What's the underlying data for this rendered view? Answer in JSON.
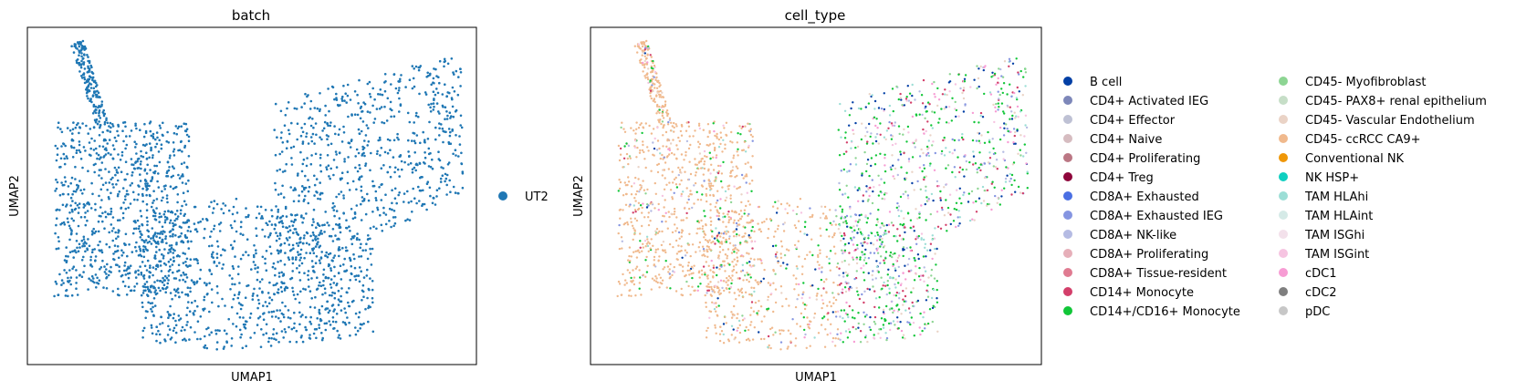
{
  "chart_data": [
    {
      "type": "scatter",
      "title": "batch",
      "xlabel": "UMAP1",
      "ylabel": "UMAP2",
      "ticks": "none",
      "legend_placement": "right",
      "legend": [
        {
          "label": "UT2",
          "color": "#1f77b4"
        }
      ]
    },
    {
      "type": "scatter",
      "title": "cell_type",
      "xlabel": "UMAP1",
      "ylabel": "UMAP2",
      "ticks": "none",
      "legend_placement": "right",
      "legend": [
        {
          "label": "B cell",
          "color": "#023fa5"
        },
        {
          "label": "CD4+ Activated IEG",
          "color": "#7d87b9"
        },
        {
          "label": "CD4+ Effector",
          "color": "#bec1d4"
        },
        {
          "label": "CD4+ Naive",
          "color": "#d6bcc0"
        },
        {
          "label": "CD4+ Proliferating",
          "color": "#bb7784"
        },
        {
          "label": "CD4+ Treg",
          "color": "#8e063b"
        },
        {
          "label": "CD8A+ Exhausted",
          "color": "#4a6fe3"
        },
        {
          "label": "CD8A+ Exhausted IEG",
          "color": "#8595e1"
        },
        {
          "label": "CD8A+ NK-like",
          "color": "#b5bbe3"
        },
        {
          "label": "CD8A+ Proliferating",
          "color": "#e6afb9"
        },
        {
          "label": "CD8A+ Tissue-resident",
          "color": "#e07b91"
        },
        {
          "label": "CD14+ Monocyte",
          "color": "#d33f6a"
        },
        {
          "label": "CD14+/CD16+ Monocyte",
          "color": "#11c638"
        },
        {
          "label": "CD45- Myofibroblast",
          "color": "#8dd593"
        },
        {
          "label": "CD45- PAX8+ renal epithelium",
          "color": "#c6dec7"
        },
        {
          "label": "CD45- Vascular Endothelium",
          "color": "#ead3c6"
        },
        {
          "label": "CD45- ccRCC CA9+",
          "color": "#f0b98d"
        },
        {
          "label": "Conventional NK",
          "color": "#ef9708"
        },
        {
          "label": "NK HSP+",
          "color": "#0fcfc0"
        },
        {
          "label": "TAM HLAhi",
          "color": "#9cded6"
        },
        {
          "label": "TAM HLAint",
          "color": "#d5eae7"
        },
        {
          "label": "TAM ISGhi",
          "color": "#f3e1eb"
        },
        {
          "label": "TAM ISGint",
          "color": "#f6c4e1"
        },
        {
          "label": "cDC1",
          "color": "#f79cd4"
        },
        {
          "label": "cDC2",
          "color": "#7f7f7f"
        },
        {
          "label": "pDC",
          "color": "#c7c7c7"
        }
      ]
    }
  ]
}
